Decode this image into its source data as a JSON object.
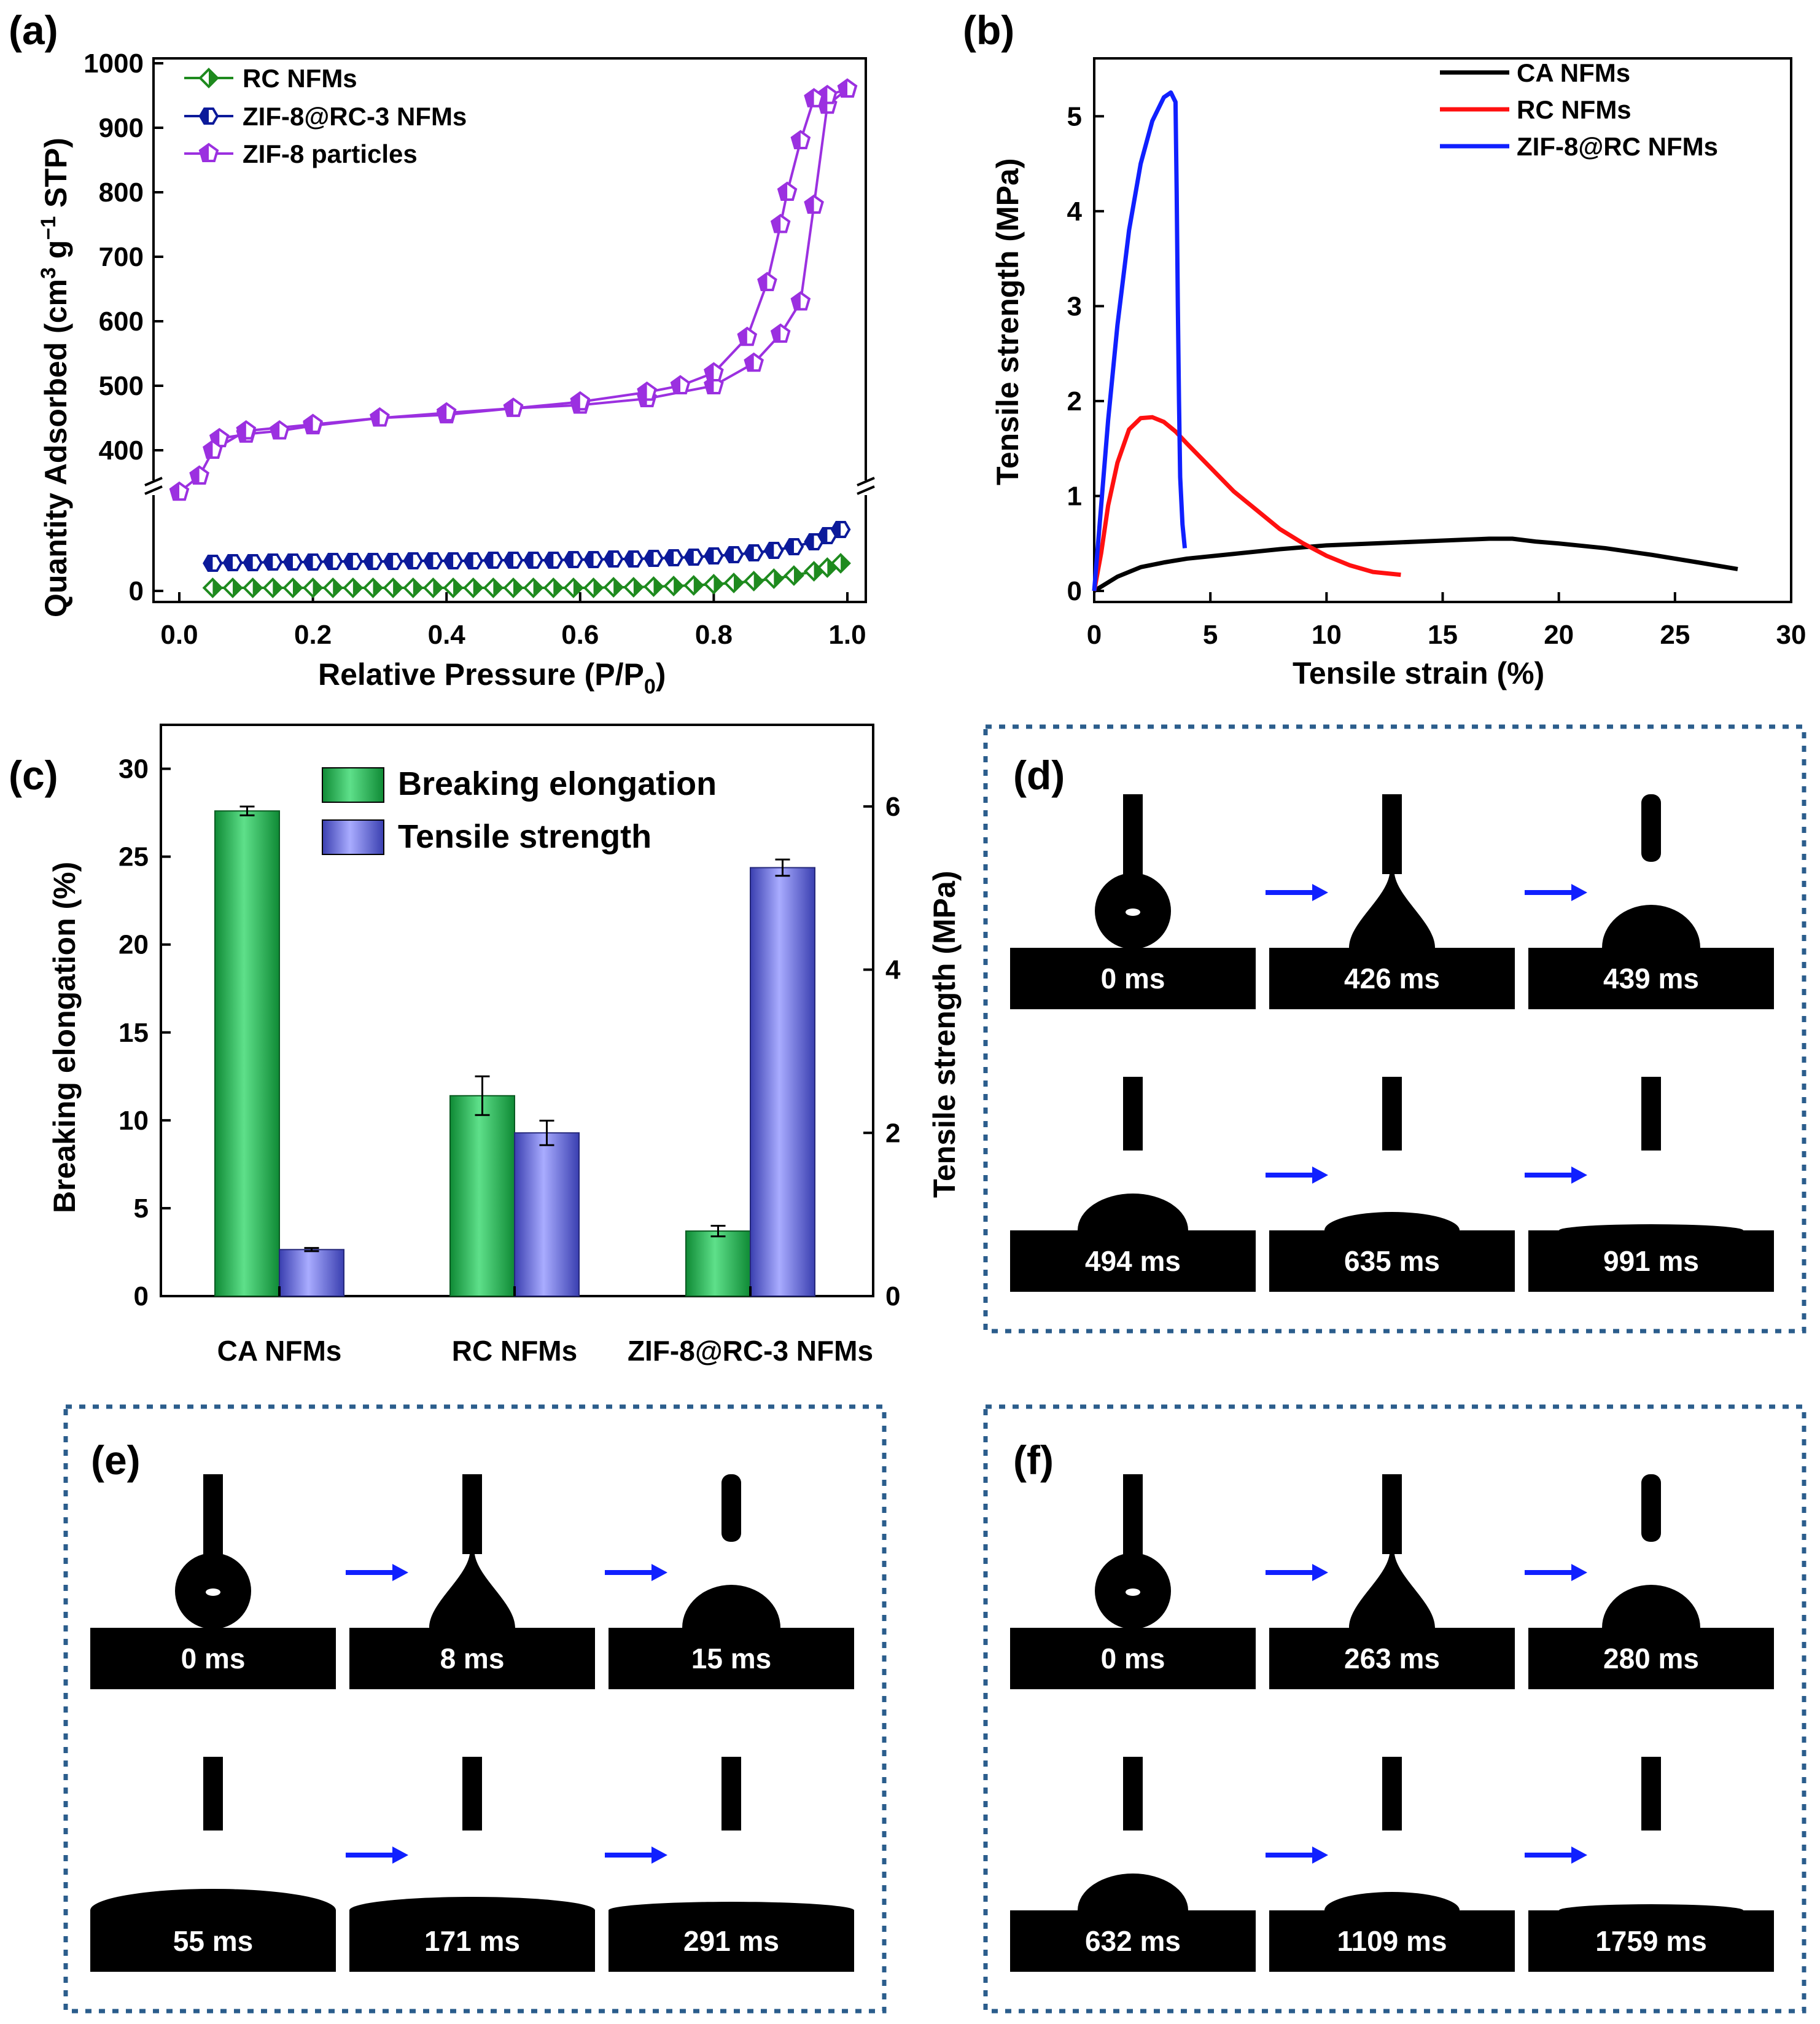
{
  "figure": {
    "panels": {
      "a": "(a)",
      "b": "(b)",
      "c": "(c)",
      "d": "(d)",
      "e": "(e)",
      "f": "(f)"
    }
  },
  "chart_data": [
    {
      "id": "a",
      "type": "line",
      "xlabel_main": "Relative Pressure (P/P",
      "xlabel_sub": "0",
      "xlabel_end": ")",
      "ylabel_main": "Quantity Adsorbed (cm",
      "ylabel_sup1": "3",
      "ylabel_mid": " g",
      "ylabel_sup2": "−1",
      "ylabel_end": " STP)",
      "xlim": [
        0.0,
        1.0
      ],
      "xticks": [
        "0.0",
        "0.2",
        "0.4",
        "0.6",
        "0.8",
        "1.0"
      ],
      "yticks_upper": [
        "400",
        "500",
        "600",
        "700",
        "800",
        "900",
        "1000"
      ],
      "yticks_lower": [
        "0"
      ],
      "axis_break": true,
      "colors": {
        "rc": "#1e8a1e",
        "zifrc": "#0c1a9a",
        "zif": "#9b30e0"
      },
      "series": [
        {
          "name": "RC NFMs",
          "x": [
            0.05,
            0.08,
            0.11,
            0.14,
            0.17,
            0.2,
            0.23,
            0.26,
            0.29,
            0.32,
            0.35,
            0.38,
            0.41,
            0.44,
            0.47,
            0.5,
            0.53,
            0.56,
            0.59,
            0.62,
            0.65,
            0.68,
            0.71,
            0.74,
            0.77,
            0.8,
            0.83,
            0.86,
            0.89,
            0.92,
            0.95,
            0.97,
            0.99
          ],
          "y": [
            5,
            5,
            5,
            5,
            5,
            5,
            5,
            5,
            5,
            5,
            5,
            5,
            5,
            5,
            5,
            5,
            5,
            5,
            5,
            5,
            6,
            6,
            7,
            8,
            9,
            11,
            13,
            16,
            20,
            25,
            32,
            38,
            45
          ]
        },
        {
          "name": "ZIF-8@RC-3 NFMs",
          "x": [
            0.05,
            0.08,
            0.11,
            0.14,
            0.17,
            0.2,
            0.23,
            0.26,
            0.29,
            0.32,
            0.35,
            0.38,
            0.41,
            0.44,
            0.47,
            0.5,
            0.53,
            0.56,
            0.59,
            0.62,
            0.65,
            0.68,
            0.71,
            0.74,
            0.77,
            0.8,
            0.83,
            0.86,
            0.89,
            0.92,
            0.95,
            0.97,
            0.99
          ],
          "y": [
            45,
            46,
            46,
            47,
            47,
            47,
            48,
            48,
            48,
            48,
            49,
            49,
            49,
            49,
            50,
            50,
            50,
            50,
            51,
            51,
            52,
            52,
            53,
            54,
            55,
            57,
            59,
            62,
            66,
            72,
            80,
            90,
            100
          ]
        },
        {
          "name": "ZIF-8 particles",
          "x_ads": [
            0.0,
            0.03,
            0.06,
            0.1,
            0.15,
            0.2,
            0.3,
            0.4,
            0.5,
            0.6,
            0.7,
            0.8,
            0.86,
            0.9,
            0.93,
            0.95,
            0.97,
            1.0
          ],
          "y_ads": [
            335,
            360,
            418,
            425,
            430,
            438,
            450,
            455,
            465,
            470,
            480,
            500,
            535,
            580,
            630,
            780,
            935,
            960
          ],
          "x_des": [
            1.0,
            0.97,
            0.95,
            0.93,
            0.91,
            0.9,
            0.88,
            0.85,
            0.8,
            0.75,
            0.7,
            0.6,
            0.5,
            0.4,
            0.3,
            0.2,
            0.1,
            0.05
          ],
          "y_des": [
            960,
            950,
            945,
            880,
            800,
            750,
            660,
            575,
            520,
            500,
            490,
            475,
            465,
            458,
            450,
            440,
            430,
            400
          ]
        }
      ]
    },
    {
      "id": "b",
      "type": "line",
      "xlabel": "Tensile strain (%)",
      "ylabel": "Tensile strength (MPa)",
      "xlim": [
        0,
        30
      ],
      "ylim": [
        0,
        5.5
      ],
      "xticks": [
        "0",
        "5",
        "10",
        "15",
        "20",
        "25",
        "30"
      ],
      "yticks": [
        "0",
        "1",
        "2",
        "3",
        "4",
        "5"
      ],
      "colors": {
        "ca": "#000000",
        "rc": "#ff1010",
        "zifrc": "#1020ff"
      },
      "series": [
        {
          "name": "CA NFMs",
          "x": [
            0,
            1,
            2,
            3,
            4,
            6,
            8,
            10,
            12,
            14,
            16,
            17,
            18,
            19,
            20,
            22,
            24,
            26,
            27.7
          ],
          "y": [
            0,
            0.15,
            0.25,
            0.3,
            0.34,
            0.39,
            0.44,
            0.48,
            0.5,
            0.52,
            0.54,
            0.55,
            0.55,
            0.52,
            0.5,
            0.45,
            0.38,
            0.3,
            0.23
          ]
        },
        {
          "name": "RC NFMs",
          "x": [
            0,
            0.3,
            0.6,
            1,
            1.5,
            2,
            2.5,
            3,
            3.5,
            4,
            5,
            6,
            7,
            8,
            9,
            10,
            11,
            12,
            13.2
          ],
          "y": [
            0,
            0.4,
            0.9,
            1.35,
            1.7,
            1.82,
            1.83,
            1.78,
            1.68,
            1.55,
            1.3,
            1.05,
            0.85,
            0.65,
            0.5,
            0.37,
            0.27,
            0.2,
            0.17
          ]
        },
        {
          "name": "ZIF-8@RC NFMs",
          "x": [
            0,
            0.3,
            0.6,
            1,
            1.5,
            2,
            2.5,
            3,
            3.3,
            3.5,
            3.55,
            3.6,
            3.65,
            3.7,
            3.8,
            3.9
          ],
          "y": [
            0,
            0.9,
            1.8,
            2.8,
            3.8,
            4.5,
            4.95,
            5.2,
            5.25,
            5.15,
            4.2,
            3,
            2,
            1.2,
            0.7,
            0.45
          ]
        }
      ]
    },
    {
      "id": "c",
      "type": "bar",
      "categories": [
        "CA NFMs",
        "RC NFMs",
        "ZIF-8@RC-3 NFMs"
      ],
      "ylabel_left": "Breaking elongation (%)",
      "ylabel_right": "Tensile strength (MPa)",
      "ylim_left": [
        0,
        32.5
      ],
      "ylim_right": [
        0,
        7.0
      ],
      "yticks_left": [
        "0",
        "5",
        "10",
        "15",
        "20",
        "25",
        "30"
      ],
      "yticks_right": [
        "0",
        "2",
        "4",
        "6"
      ],
      "colors": {
        "elong": "#22bb55",
        "tensile": "#7b7fe8"
      },
      "series": [
        {
          "name": "Breaking elongation",
          "axis": "left",
          "values": [
            27.6,
            11.4,
            3.7
          ],
          "errors": [
            0.25,
            1.1,
            0.3
          ]
        },
        {
          "name": "Tensile strength",
          "axis": "right",
          "values": [
            0.57,
            2.0,
            5.25
          ],
          "errors": [
            0.02,
            0.15,
            0.1
          ]
        }
      ]
    }
  ],
  "droplet_panels": {
    "d": {
      "times_top": [
        "0 ms",
        "426 ms",
        "439 ms"
      ],
      "times_bottom": [
        "494 ms",
        "635 ms",
        "991 ms"
      ]
    },
    "e": {
      "times_top": [
        "0 ms",
        "8 ms",
        "15 ms"
      ],
      "times_bottom": [
        "55 ms",
        "171 ms",
        "291 ms"
      ]
    },
    "f": {
      "times_top": [
        "0 ms",
        "263 ms",
        "280 ms"
      ],
      "times_bottom": [
        "632 ms",
        "1109 ms",
        "1759 ms"
      ]
    }
  }
}
